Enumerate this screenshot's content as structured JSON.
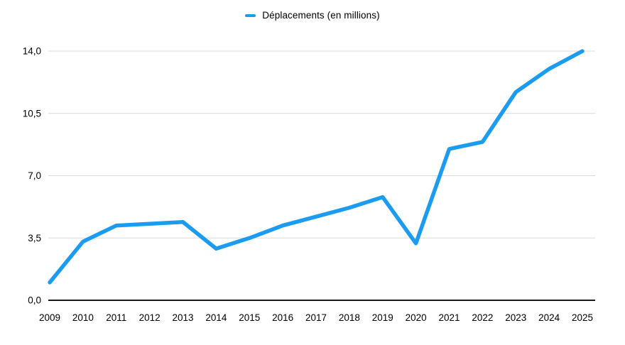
{
  "legend": {
    "marker_icon": "line-dash-icon",
    "label": "Déplacements (en millions)"
  },
  "chart_data": {
    "type": "line",
    "title": "",
    "xlabel": "",
    "ylabel": "",
    "categories": [
      "2009",
      "2010",
      "2011",
      "2012",
      "2013",
      "2014",
      "2015",
      "2016",
      "2017",
      "2018",
      "2019",
      "2020",
      "2021",
      "2022",
      "2023",
      "2024",
      "2025"
    ],
    "series": [
      {
        "name": "Déplacements (en millions)",
        "values": [
          1.0,
          3.3,
          4.2,
          4.3,
          4.4,
          2.9,
          3.5,
          4.2,
          4.7,
          5.2,
          5.8,
          3.2,
          8.5,
          8.9,
          11.7,
          13.0,
          14.0
        ]
      }
    ],
    "ylim": [
      0,
      14
    ],
    "yticks": [
      {
        "value": 0,
        "label": "0,0"
      },
      {
        "value": 3.5,
        "label": "3,5"
      },
      {
        "value": 7,
        "label": "7,0"
      },
      {
        "value": 10.5,
        "label": "10,5"
      },
      {
        "value": 14,
        "label": "14,0"
      }
    ],
    "grid": true,
    "legend_position": "top-center",
    "colors": {
      "line": "#1b9cf0",
      "grid": "#d9d9d9",
      "axis": "#1a1a1a",
      "text": "#000000",
      "background": "#ffffff"
    }
  }
}
